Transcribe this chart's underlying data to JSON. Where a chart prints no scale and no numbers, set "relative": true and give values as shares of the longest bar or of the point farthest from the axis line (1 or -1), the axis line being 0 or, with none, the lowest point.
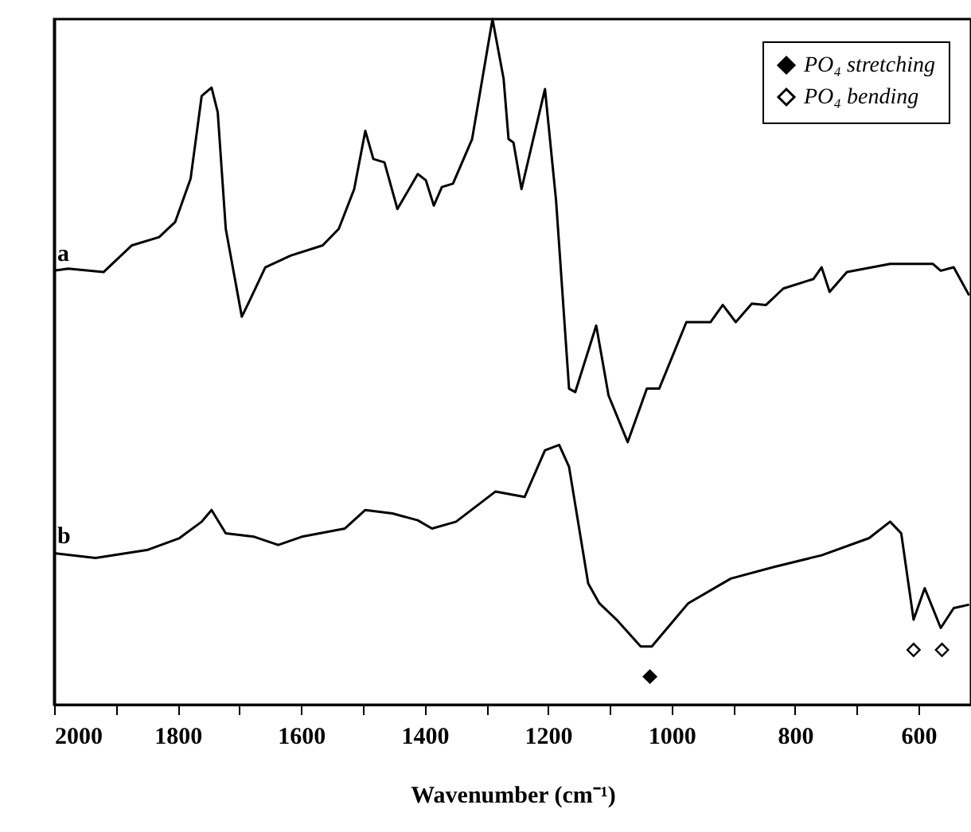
{
  "chart_data": {
    "type": "line",
    "relative": true,
    "xlabel": "Wavenumber (cm⁻¹)",
    "xlim": [
      2000,
      515
    ],
    "xticks": [
      2000,
      {
        "value": 1900,
        "label": null
      },
      1800,
      {
        "value": 1700,
        "label": null
      },
      1600,
      {
        "value": 1500,
        "label": null
      },
      1400,
      {
        "value": 1300,
        "label": null
      },
      1200,
      {
        "value": 1100,
        "label": null
      },
      1000,
      {
        "value": 900,
        "label": null
      },
      800,
      {
        "value": 700,
        "label": null
      },
      600
    ],
    "legend": "top right",
    "grid": false,
    "line_style": "solid",
    "tick_labels": "x",
    "series": [
      {
        "name": "a",
        "color": "#000000",
        "x": [
          2000,
          1977,
          1920,
          1874,
          1830,
          1804,
          1779,
          1761,
          1745,
          1735,
          1722,
          1696,
          1683,
          1658,
          1617,
          1565,
          1539,
          1514,
          1496,
          1483,
          1465,
          1444,
          1411,
          1398,
          1385,
          1372,
          1354,
          1323,
          1290,
          1272,
          1264,
          1256,
          1243,
          1205,
          1187,
          1166,
          1156,
          1122,
          1102,
          1071,
          1040,
          1020,
          976,
          937,
          917,
          896,
          870,
          847,
          819,
          770,
          757,
          744,
          716,
          646,
          577,
          564,
          543,
          518
        ],
        "values": [
          0.633,
          0.636,
          0.631,
          0.67,
          0.682,
          0.704,
          0.767,
          0.888,
          0.9,
          0.864,
          0.694,
          0.566,
          0.59,
          0.638,
          0.655,
          0.67,
          0.694,
          0.752,
          0.837,
          0.796,
          0.791,
          0.723,
          0.774,
          0.765,
          0.728,
          0.755,
          0.76,
          0.825,
          1,
          0.913,
          0.825,
          0.82,
          0.752,
          0.898,
          0.735,
          0.461,
          0.456,
          0.553,
          0.451,
          0.383,
          0.461,
          0.461,
          0.558,
          0.558,
          0.583,
          0.558,
          0.585,
          0.583,
          0.607,
          0.621,
          0.638,
          0.602,
          0.631,
          0.643,
          0.643,
          0.633,
          0.638,
          0.597
        ]
      },
      {
        "name": "b",
        "color": "#000000",
        "x": [
          2000,
          1933,
          1848,
          1797,
          1761,
          1745,
          1722,
          1676,
          1637,
          1599,
          1529,
          1496,
          1452,
          1411,
          1388,
          1349,
          1285,
          1238,
          1205,
          1182,
          1166,
          1135,
          1117,
          1089,
          1050,
          1032,
          973,
          904,
          834,
          757,
          680,
          646,
          628,
          608,
          590,
          564,
          543,
          518
        ],
        "values": [
          0.221,
          0.214,
          0.226,
          0.243,
          0.267,
          0.284,
          0.25,
          0.245,
          0.233,
          0.245,
          0.257,
          0.284,
          0.279,
          0.269,
          0.257,
          0.267,
          0.311,
          0.303,
          0.371,
          0.379,
          0.347,
          0.177,
          0.148,
          0.124,
          0.085,
          0.085,
          0.148,
          0.184,
          0.201,
          0.218,
          0.243,
          0.267,
          0.25,
          0.124,
          0.17,
          0.112,
          0.141,
          0.146
        ]
      },
      {
        "name": "PO₄ stretching",
        "type": "scatter",
        "marker": "diamond",
        "color": "#000000",
        "x": [
          1035
        ],
        "values": [
          0.041
        ]
      },
      {
        "name": "PO₄ bending",
        "type": "scatter",
        "marker": "diamond",
        "color": "#000000",
        "x": [
          608,
          562
        ],
        "values": [
          0.08,
          0.08
        ]
      }
    ]
  }
}
